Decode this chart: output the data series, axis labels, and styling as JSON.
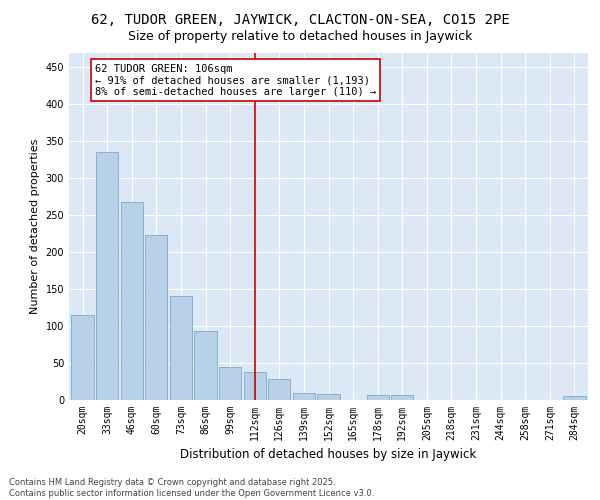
{
  "title": "62, TUDOR GREEN, JAYWICK, CLACTON-ON-SEA, CO15 2PE",
  "subtitle": "Size of property relative to detached houses in Jaywick",
  "xlabel": "Distribution of detached houses by size in Jaywick",
  "ylabel": "Number of detached properties",
  "categories": [
    "20sqm",
    "33sqm",
    "46sqm",
    "60sqm",
    "73sqm",
    "86sqm",
    "99sqm",
    "112sqm",
    "126sqm",
    "139sqm",
    "152sqm",
    "165sqm",
    "178sqm",
    "192sqm",
    "205sqm",
    "218sqm",
    "231sqm",
    "244sqm",
    "258sqm",
    "271sqm",
    "284sqm"
  ],
  "values": [
    115,
    335,
    268,
    223,
    140,
    93,
    45,
    38,
    28,
    10,
    8,
    0,
    7,
    7,
    0,
    0,
    0,
    0,
    0,
    0,
    5
  ],
  "bar_color": "#b8d0e8",
  "bar_edge_color": "#7aaac8",
  "vline_x_idx": 7,
  "vline_color": "#cc0000",
  "annotation_text": "62 TUDOR GREEN: 106sqm\n← 91% of detached houses are smaller (1,193)\n8% of semi-detached houses are larger (110) →",
  "annotation_box_color": "#ffffff",
  "annotation_box_edge_color": "#cc0000",
  "ylim": [
    0,
    470
  ],
  "yticks": [
    0,
    50,
    100,
    150,
    200,
    250,
    300,
    350,
    400,
    450
  ],
  "background_color": "#dce8f5",
  "footer_text": "Contains HM Land Registry data © Crown copyright and database right 2025.\nContains public sector information licensed under the Open Government Licence v3.0.",
  "title_fontsize": 10,
  "subtitle_fontsize": 9,
  "xlabel_fontsize": 8.5,
  "ylabel_fontsize": 8,
  "tick_fontsize": 7,
  "annot_fontsize": 7.5
}
